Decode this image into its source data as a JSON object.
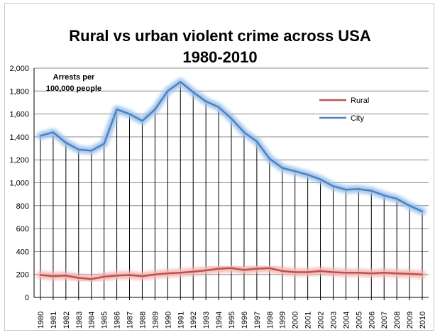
{
  "chart_data": {
    "type": "line",
    "title_line1": "Rural vs urban violent crime across USA",
    "title_line2": "1980-2010",
    "annotation_line1": "Arrests per",
    "annotation_line2": "100,000 people",
    "xlabel": "",
    "ylabel": "",
    "ylim": [
      0,
      2000
    ],
    "yticks": [
      0,
      200,
      400,
      600,
      800,
      1000,
      1200,
      1400,
      1600,
      1800,
      2000
    ],
    "ytick_labels": [
      "0",
      "200",
      "400",
      "600",
      "800",
      "1,000",
      "1,200",
      "1,400",
      "1,600",
      "1,800",
      "2,000"
    ],
    "grid": true,
    "drop_lines": true,
    "legend_position": "top-right",
    "categories": [
      "1980",
      "1981",
      "1982",
      "1983",
      "1984",
      "1985",
      "1986",
      "1987",
      "1988",
      "1989",
      "1990",
      "1991",
      "1992",
      "1993",
      "1994",
      "1995",
      "1996",
      "1997",
      "1998",
      "1999",
      "2000",
      "2001",
      "2002",
      "2003",
      "2004",
      "2005",
      "2006",
      "2007",
      "2008",
      "2009",
      "2010"
    ],
    "series": [
      {
        "name": "Rural",
        "color": "#c0504d",
        "glow": "#f2b8b6",
        "values": [
          195,
          185,
          190,
          170,
          160,
          180,
          190,
          195,
          185,
          200,
          210,
          215,
          225,
          235,
          250,
          255,
          240,
          250,
          255,
          230,
          220,
          220,
          230,
          220,
          215,
          215,
          210,
          215,
          210,
          205,
          200
        ]
      },
      {
        "name": "City",
        "color": "#4f81bd",
        "glow": "#9ec3ec",
        "values": [
          1410,
          1440,
          1350,
          1290,
          1280,
          1340,
          1640,
          1600,
          1540,
          1640,
          1800,
          1880,
          1790,
          1710,
          1660,
          1560,
          1440,
          1360,
          1210,
          1130,
          1100,
          1070,
          1030,
          970,
          940,
          945,
          930,
          890,
          860,
          800,
          750
        ]
      }
    ]
  }
}
